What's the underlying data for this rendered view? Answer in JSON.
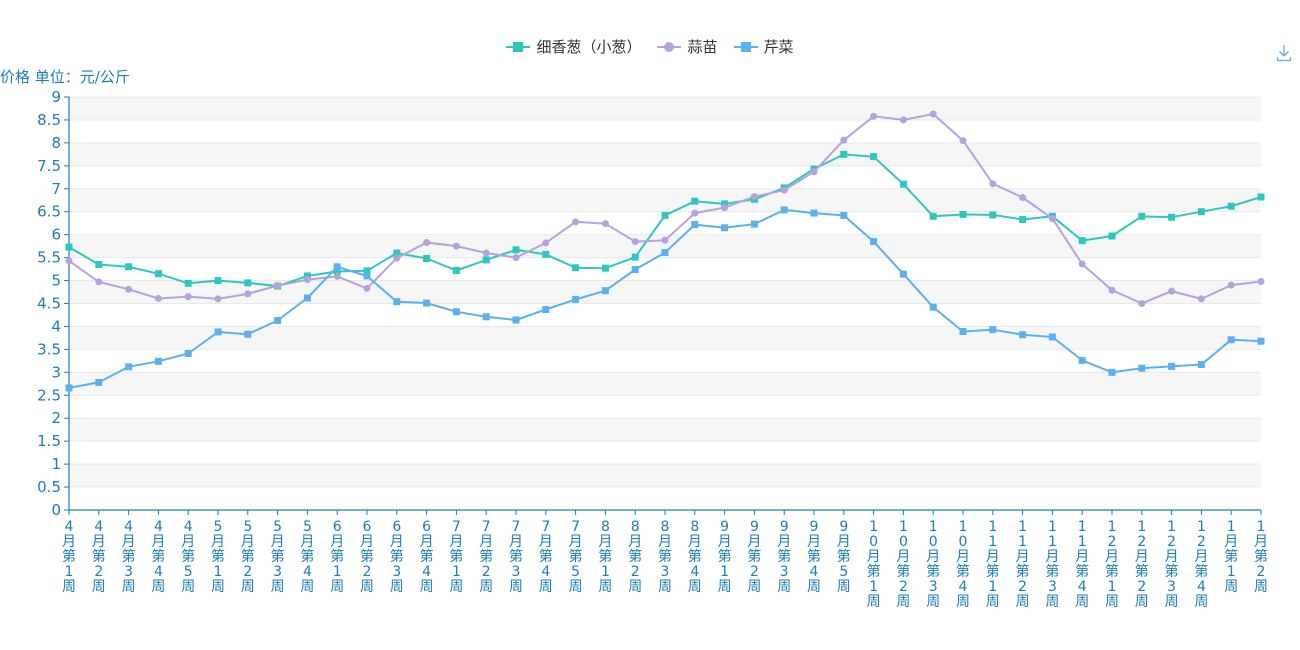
{
  "colors": {
    "axis": "#1a7fb8",
    "band": "#f6f6f6",
    "grid": "#e9e9e9"
  },
  "toolbox": {
    "download_icon": "download-icon"
  },
  "chart_data": {
    "type": "line",
    "ylabel": "价格 单位：元/公斤",
    "ylim": [
      0,
      9
    ],
    "yticks": [
      "0",
      "0.5",
      "1",
      "1.5",
      "2",
      "2.5",
      "3",
      "3.5",
      "4",
      "4.5",
      "5",
      "5.5",
      "6",
      "6.5",
      "7",
      "7.5",
      "8",
      "8.5",
      "9"
    ],
    "legend_position": "top-center",
    "categories": [
      "4月第1周",
      "4月第2周",
      "4月第3周",
      "4月第4周",
      "4月第5周",
      "5月第1周",
      "5月第2周",
      "5月第3周",
      "5月第4周",
      "6月第1周",
      "6月第2周",
      "6月第3周",
      "6月第4周",
      "7月第1周",
      "7月第2周",
      "7月第3周",
      "7月第4周",
      "7月第5周",
      "8月第1周",
      "8月第2周",
      "8月第3周",
      "8月第4周",
      "9月第1周",
      "9月第2周",
      "9月第3周",
      "9月第4周",
      "9月第5周",
      "10月第1周",
      "10月第2周",
      "10月第3周",
      "10月第4周",
      "11月第1周",
      "11月第2周",
      "11月第3周",
      "11月第4周",
      "12月第1周",
      "12月第2周",
      "12月第3周",
      "12月第4周",
      "1月第1周",
      "1月第2周"
    ],
    "series": [
      {
        "name": "细香葱（小葱）",
        "color": "#2ec7c0",
        "marker": "square",
        "values": [
          5.73,
          5.35,
          5.3,
          5.15,
          4.94,
          5.0,
          4.95,
          4.88,
          5.1,
          5.2,
          5.21,
          5.6,
          5.48,
          5.22,
          5.45,
          5.67,
          5.57,
          5.28,
          5.27,
          5.51,
          6.42,
          6.73,
          6.67,
          6.77,
          7.02,
          7.43,
          7.75,
          7.7,
          7.1,
          6.4,
          6.44,
          6.43,
          6.33,
          6.4,
          5.87,
          5.97,
          6.4,
          6.38,
          6.5,
          6.62,
          6.82
        ]
      },
      {
        "name": "蒜苗",
        "color": "#b6a2de",
        "marker": "circle",
        "values": [
          5.43,
          4.97,
          4.81,
          4.61,
          4.65,
          4.6,
          4.71,
          4.89,
          5.02,
          5.09,
          4.83,
          5.49,
          5.83,
          5.75,
          5.6,
          5.5,
          5.82,
          6.28,
          6.24,
          5.85,
          5.88,
          6.47,
          6.59,
          6.83,
          6.97,
          7.37,
          8.06,
          8.58,
          8.5,
          8.63,
          8.05,
          7.11,
          6.81,
          6.35,
          5.36,
          4.79,
          4.5,
          4.77,
          4.6,
          4.9,
          4.98
        ]
      },
      {
        "name": "芹菜",
        "color": "#5ab1ef",
        "marker": "square",
        "values": [
          2.66,
          2.78,
          3.12,
          3.24,
          3.41,
          3.88,
          3.83,
          4.13,
          4.62,
          5.3,
          5.1,
          4.54,
          4.51,
          4.32,
          4.21,
          4.14,
          4.37,
          4.59,
          4.78,
          5.24,
          5.61,
          6.22,
          6.15,
          6.23,
          6.54,
          6.47,
          6.42,
          5.85,
          5.14,
          4.42,
          3.89,
          3.93,
          3.82,
          3.77,
          3.26,
          3.0,
          3.09,
          3.13,
          3.17,
          3.71,
          3.68
        ]
      }
    ]
  }
}
